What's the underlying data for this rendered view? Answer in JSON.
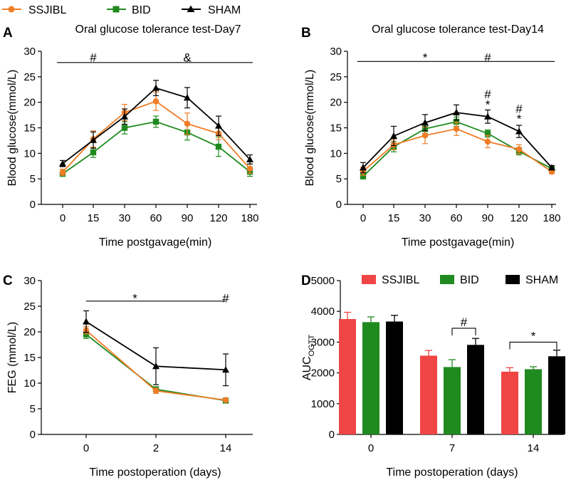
{
  "legend_top": [
    {
      "name": "SSJIBL",
      "color": "#f07c26",
      "marker": "circle"
    },
    {
      "name": "BID",
      "color": "#1f8a1f",
      "marker": "square"
    },
    {
      "name": "SHAM",
      "color": "#000000",
      "marker": "triangle"
    }
  ],
  "chart_data": [
    {
      "panel": "A",
      "type": "line",
      "title": "Oral glucose tolerance test-Day7",
      "xlabel": "Time postgavage(min)",
      "ylabel": "Blood glucose(mmol/L)",
      "categories": [
        "0",
        "15",
        "30",
        "60",
        "90",
        "120",
        "180"
      ],
      "ylim": [
        0,
        30
      ],
      "yticks": [
        0,
        5,
        10,
        15,
        20,
        25,
        30
      ],
      "series": [
        {
          "name": "SSJIBL",
          "color": "#f07c26",
          "marker": "circle",
          "values": [
            6.3,
            12.8,
            18.0,
            20.2,
            15.8,
            13.9,
            7.0
          ],
          "errors": [
            0.6,
            1.6,
            1.6,
            1.8,
            2.1,
            1.2,
            0.9
          ]
        },
        {
          "name": "BID",
          "color": "#1f8a1f",
          "marker": "square",
          "values": [
            6.0,
            10.2,
            15.0,
            16.2,
            14.1,
            11.3,
            6.4
          ],
          "errors": [
            0.5,
            1.0,
            1.2,
            1.1,
            1.5,
            1.9,
            0.9
          ]
        },
        {
          "name": "SHAM",
          "color": "#000000",
          "marker": "triangle",
          "values": [
            8.0,
            12.6,
            17.2,
            22.8,
            20.9,
            15.4,
            8.8
          ],
          "errors": [
            0.6,
            1.6,
            1.5,
            1.5,
            2.0,
            1.9,
            0.9
          ]
        }
      ],
      "significance_line": {
        "from": "0",
        "to": "180",
        "y": 27.8
      },
      "annotations": [
        {
          "text": "#",
          "at": "15",
          "y": 28.8
        },
        {
          "text": "&",
          "at": "90",
          "y": 28.8
        }
      ]
    },
    {
      "panel": "B",
      "type": "line",
      "title": "Oral glucose tolerance test-Day14",
      "xlabel": "Time postgavage(min)",
      "ylabel": "Blood glucose(mmol/L)",
      "categories": [
        "0",
        "15",
        "30",
        "60",
        "90",
        "120",
        "180"
      ],
      "ylim": [
        0,
        30
      ],
      "yticks": [
        0,
        5,
        10,
        15,
        20,
        25,
        30
      ],
      "series": [
        {
          "name": "SSJIBL",
          "color": "#f07c26",
          "marker": "circle",
          "values": [
            6.5,
            11.7,
            13.5,
            14.8,
            12.3,
            10.8,
            6.4
          ],
          "errors": [
            0.8,
            1.0,
            1.6,
            1.3,
            1.2,
            0.9,
            0.4
          ]
        },
        {
          "name": "BID",
          "color": "#1f8a1f",
          "marker": "square",
          "values": [
            5.5,
            11.3,
            14.8,
            16.2,
            13.9,
            10.4,
            7.0
          ],
          "errors": [
            0.5,
            1.0,
            0.9,
            0.9,
            0.7,
            0.7,
            0.4
          ]
        },
        {
          "name": "SHAM",
          "color": "#000000",
          "marker": "triangle",
          "values": [
            7.2,
            13.4,
            16.0,
            18.0,
            17.2,
            14.3,
            7.2
          ],
          "errors": [
            1.0,
            1.9,
            1.6,
            1.5,
            1.3,
            1.2,
            0.4
          ]
        }
      ],
      "significance_line": {
        "from": "0",
        "to": "180",
        "y": 28.0
      },
      "annotations": [
        {
          "text": "*",
          "at": "30",
          "y": 28.8
        },
        {
          "text": "#",
          "at": "90",
          "y": 28.8
        },
        {
          "text": "#",
          "at": "90",
          "y": 21.6
        },
        {
          "text": "*",
          "at": "90",
          "y": 19.6
        },
        {
          "text": "#",
          "at": "120",
          "y": 18.8
        },
        {
          "text": "*",
          "at": "120",
          "y": 16.8
        }
      ]
    },
    {
      "panel": "C",
      "type": "line",
      "title": "",
      "xlabel": "Time postoperation (days)",
      "ylabel": "FEG (mmol/L)",
      "categories": [
        "0",
        "2",
        "14"
      ],
      "ylim": [
        0,
        30
      ],
      "yticks": [
        0,
        5,
        10,
        15,
        20,
        25,
        30
      ],
      "series": [
        {
          "name": "SSJIBL",
          "color": "#f07c26",
          "marker": "circle",
          "values": [
            20.3,
            8.5,
            6.7
          ],
          "errors": [
            0.7,
            0.5,
            0.2
          ]
        },
        {
          "name": "BID",
          "color": "#1f8a1f",
          "marker": "square",
          "values": [
            19.5,
            8.8,
            6.6
          ],
          "errors": [
            0.8,
            0.4,
            0.2
          ]
        },
        {
          "name": "SHAM",
          "color": "#000000",
          "marker": "triangle",
          "values": [
            22.0,
            13.3,
            12.6
          ],
          "errors": [
            2.1,
            3.6,
            3.1
          ]
        }
      ],
      "significance_line": {
        "from": "0",
        "to": "14",
        "y": 26.0
      },
      "annotations": [
        {
          "text": "*",
          "at": "0.7",
          "y": 26.6
        },
        {
          "text": "#",
          "at": "2.4",
          "y": 26.6
        }
      ]
    },
    {
      "panel": "D",
      "type": "bar",
      "title": "",
      "xlabel": "Time postoperation (days)",
      "ylabel": "AUC",
      "ylabel_sub": "OGTT",
      "categories": [
        "0",
        "7",
        "14"
      ],
      "ylim": [
        0,
        5000
      ],
      "yticks": [
        0,
        1000,
        2000,
        3000,
        4000,
        5000
      ],
      "legend": [
        "SSJIBL",
        "BID",
        "SHAM"
      ],
      "series": [
        {
          "name": "SSJIBL",
          "color": "#f04545",
          "values": [
            3750,
            2560,
            2040
          ],
          "errors": [
            220,
            170,
            130
          ]
        },
        {
          "name": "BID",
          "color": "#1f8a1f",
          "values": [
            3650,
            2190,
            2120
          ],
          "errors": [
            170,
            240,
            80
          ]
        },
        {
          "name": "SHAM",
          "color": "#000000",
          "values": [
            3670,
            2910,
            2540
          ],
          "errors": [
            200,
            210,
            200
          ]
        }
      ],
      "brackets": [
        {
          "text": "#",
          "category": "7",
          "y": 3450
        },
        {
          "text": "*",
          "category": "14",
          "y": 3000
        }
      ]
    }
  ]
}
